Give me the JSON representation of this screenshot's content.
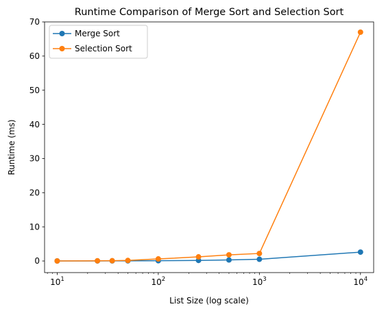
{
  "chart_data": {
    "type": "line",
    "title": "Runtime Comparison of Merge Sort and Selection Sort",
    "xlabel": "List Size (log scale)",
    "ylabel": "Runtime (ms)",
    "xscale": "log",
    "xlim": [
      7.5,
      13500
    ],
    "ylim": [
      -3.4,
      70
    ],
    "x_ticks": [
      10,
      100,
      1000,
      10000
    ],
    "x_tick_labels": [
      {
        "base": "10",
        "exp": "1"
      },
      {
        "base": "10",
        "exp": "2"
      },
      {
        "base": "10",
        "exp": "3"
      },
      {
        "base": "10",
        "exp": "4"
      }
    ],
    "y_ticks": [
      0,
      10,
      20,
      30,
      40,
      50,
      60,
      70
    ],
    "y_tick_labels": [
      "0",
      "10",
      "20",
      "30",
      "40",
      "50",
      "60",
      "70"
    ],
    "grid": false,
    "legend_position": "top-left",
    "x": [
      10,
      25,
      35,
      50,
      100,
      250,
      500,
      1000,
      10000
    ],
    "series": [
      {
        "name": "Merge Sort",
        "color": "#1f77b4",
        "values": [
          0.01,
          0.02,
          0.03,
          0.04,
          0.08,
          0.17,
          0.3,
          0.5,
          2.6
        ]
      },
      {
        "name": "Selection Sort",
        "color": "#ff7f0e",
        "values": [
          0.01,
          0.05,
          0.08,
          0.15,
          0.6,
          1.2,
          1.8,
          2.2,
          67.0
        ]
      }
    ]
  }
}
